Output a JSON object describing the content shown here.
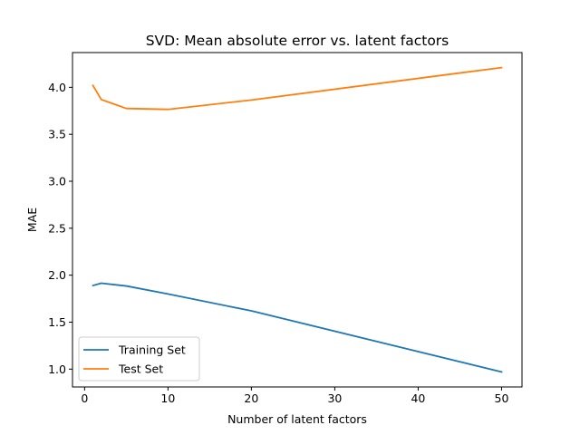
{
  "chart_data": {
    "type": "line",
    "title": "SVD: Mean absolute error vs. latent factors",
    "xlabel": "Number of latent factors",
    "ylabel": "MAE",
    "xlim": [
      -1.45,
      52.45
    ],
    "ylim": [
      0.81,
      4.37
    ],
    "xticks": [
      0,
      10,
      20,
      30,
      40,
      50
    ],
    "xtick_labels": [
      "0",
      "10",
      "20",
      "30",
      "40",
      "50"
    ],
    "yticks": [
      1.0,
      1.5,
      2.0,
      2.5,
      3.0,
      3.5,
      4.0
    ],
    "ytick_labels": [
      "1.0",
      "1.5",
      "2.0",
      "2.5",
      "3.0",
      "3.5",
      "4.0"
    ],
    "grid": false,
    "legend_position": "lower-left",
    "series": [
      {
        "name": "Training Set",
        "color": "#1f77b4",
        "x": [
          1,
          2,
          5,
          10,
          20,
          50
        ],
        "values": [
          1.89,
          1.915,
          1.885,
          1.8,
          1.62,
          0.97
        ]
      },
      {
        "name": "Test Set",
        "color": "#ff7f0e",
        "x": [
          1,
          2,
          5,
          10,
          20,
          50
        ],
        "values": [
          4.02,
          3.87,
          3.775,
          3.765,
          3.865,
          4.21
        ]
      }
    ]
  }
}
